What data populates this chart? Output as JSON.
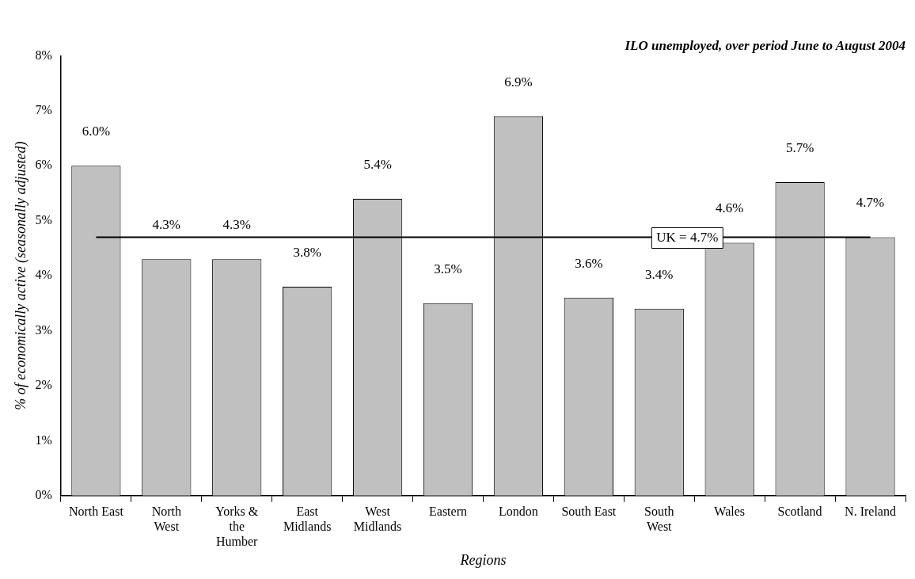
{
  "chart_data": {
    "type": "bar",
    "title": "ILO unemployed, over period June to August 2004",
    "xlabel": "Regions",
    "ylabel": "% of economically active (seasonally adjusted)",
    "categories": [
      "North East",
      "North West",
      "Yorks & the Humber",
      "East Midlands",
      "West Midlands",
      "Eastern",
      "London",
      "South East",
      "South West",
      "Wales",
      "Scotland",
      "N. Ireland"
    ],
    "values": [
      6.0,
      4.3,
      4.3,
      3.8,
      5.4,
      3.5,
      6.9,
      3.6,
      3.4,
      4.6,
      5.7,
      4.7
    ],
    "value_labels": [
      "6.0%",
      "4.3%",
      "4.3%",
      "3.8%",
      "5.4%",
      "3.5%",
      "6.9%",
      "3.6%",
      "3.4%",
      "4.6%",
      "5.7%",
      "4.7%"
    ],
    "color": "#c0c0c0",
    "ylim": [
      0,
      8
    ],
    "yticks": [
      {
        "value": 0,
        "label": "0%"
      },
      {
        "value": 1,
        "label": "1%"
      },
      {
        "value": 2,
        "label": "2%"
      },
      {
        "value": 3,
        "label": "3%"
      },
      {
        "value": 4,
        "label": "4%"
      },
      {
        "value": 5,
        "label": "5%"
      },
      {
        "value": 6,
        "label": "6%"
      },
      {
        "value": 7,
        "label": "7%"
      },
      {
        "value": 8,
        "label": "8%"
      }
    ],
    "ref_lines": [
      {
        "axis": "y",
        "value": 4.7,
        "label": "UK = 4.7%",
        "color": "#000000"
      }
    ],
    "grid": false,
    "legend": false
  }
}
